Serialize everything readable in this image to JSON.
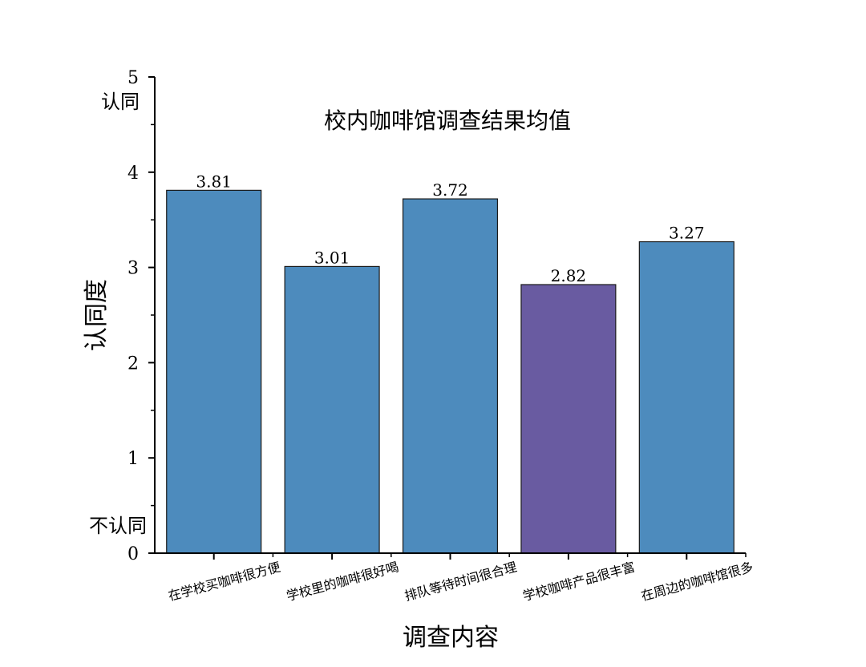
{
  "chart_data": {
    "type": "bar",
    "title": "校内咖啡馆调查结果均值",
    "xlabel": "调查内容",
    "ylabel": "认同度",
    "categories": [
      "在学校买咖啡很方便",
      "学校里的咖啡很好喝",
      "排队等待时间很合理",
      "学校咖啡产品很丰富",
      "在周边的咖啡馆很多"
    ],
    "values": [
      3.81,
      3.01,
      3.72,
      2.82,
      3.27
    ],
    "value_labels": [
      "3.81",
      "3.01",
      "3.72",
      "2.82",
      "3.27"
    ],
    "bar_colors": [
      "#4d8bbd",
      "#4d8bbd",
      "#4d8bbd",
      "#695ba1",
      "#4d8bbd"
    ],
    "ylim": [
      0,
      5
    ],
    "yticks": [
      0,
      1,
      2,
      3,
      4,
      5
    ],
    "ytick_labels": [
      "0",
      "1",
      "2",
      "3",
      "4",
      "5"
    ],
    "y_annotations": {
      "top": "认同",
      "bottom": "不认同"
    },
    "grid": false,
    "legend": "none"
  }
}
